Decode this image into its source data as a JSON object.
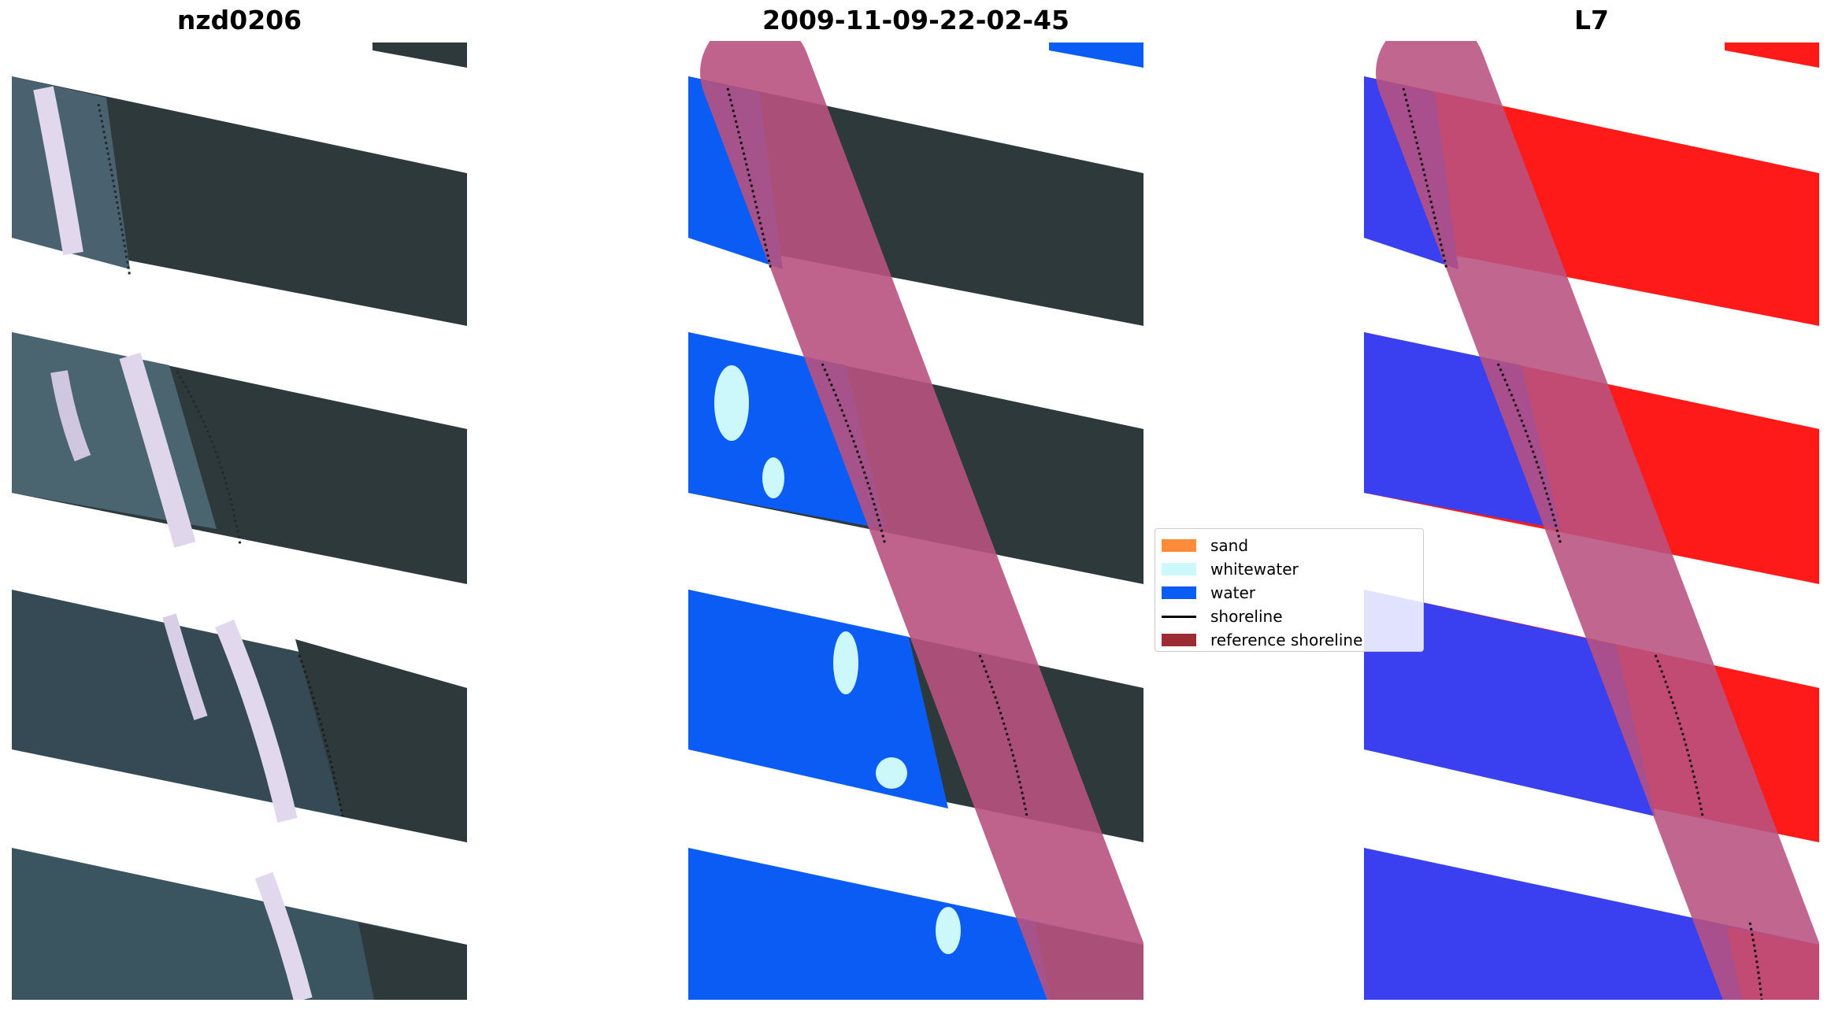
{
  "panels": [
    {
      "title": "nzd0206"
    },
    {
      "title": "2009-11-09-22-02-45"
    },
    {
      "title": "L7"
    }
  ],
  "legend": [
    {
      "label": "sand",
      "color": "#ff8c3a",
      "kind": "patch"
    },
    {
      "label": "whitewater",
      "color": "#ccf7fb",
      "kind": "patch"
    },
    {
      "label": "water",
      "color": "#0a5cf5",
      "kind": "patch"
    },
    {
      "label": "shoreline",
      "color": "#000000",
      "kind": "line"
    },
    {
      "label": "reference shoreline",
      "color": "#9b2c34",
      "kind": "patch"
    }
  ],
  "colors": {
    "land_rgb": "#2e393b",
    "water_rgb": "#3a5560",
    "surf": "#d8cfe8",
    "water_class": "#0a5cf5",
    "whitewater_class": "#ccf7fb",
    "reference_buffer": "#b8527f",
    "index_land": "#ff1a1a",
    "index_water": "#3a3ff0"
  }
}
